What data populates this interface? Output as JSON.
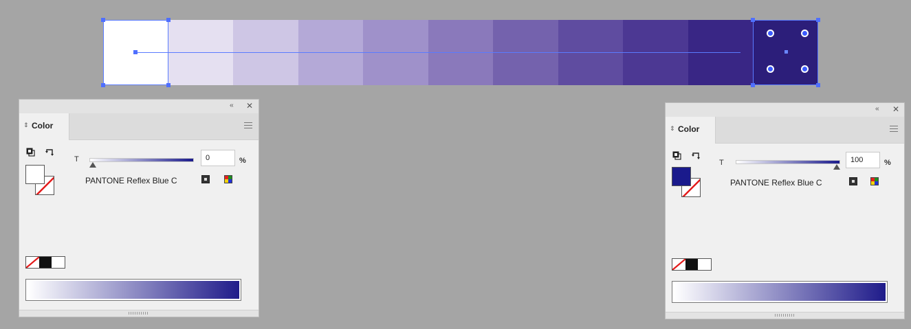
{
  "canvas": {
    "background": "#a5a5a5",
    "blend_steps": [
      "#ffffff",
      "#e5e0f1",
      "#cec6e5",
      "#b4a9d7",
      "#9f91ca",
      "#8a79bb",
      "#7462ad",
      "#5f4ca0",
      "#4c3893",
      "#392685",
      "#2c1e7a"
    ],
    "selection_color": "#5a7bff"
  },
  "panel_left": {
    "tab_label": "Color",
    "collapse_label": "‹‹",
    "close_label": "✕",
    "tint_label": "T",
    "tint_value": "0",
    "tint_fraction": 0,
    "percent_label": "%",
    "swatch_name": "PANTONE Reflex Blue C",
    "fill_color": "#ffffff"
  },
  "panel_right": {
    "tab_label": "Color",
    "collapse_label": "‹‹",
    "close_label": "✕",
    "tint_label": "T",
    "tint_value": "100",
    "tint_fraction": 1,
    "percent_label": "%",
    "swatch_name": "PANTONE Reflex Blue C",
    "fill_color": "#1a1a8c"
  },
  "icons": {
    "tab_arrows": "updown-arrows-icon",
    "fill_stroke_default": "default-fill-stroke-icon",
    "swap": "swap-fill-stroke-icon",
    "menu": "panel-menu-icon"
  },
  "accent": "#1a1a8c"
}
